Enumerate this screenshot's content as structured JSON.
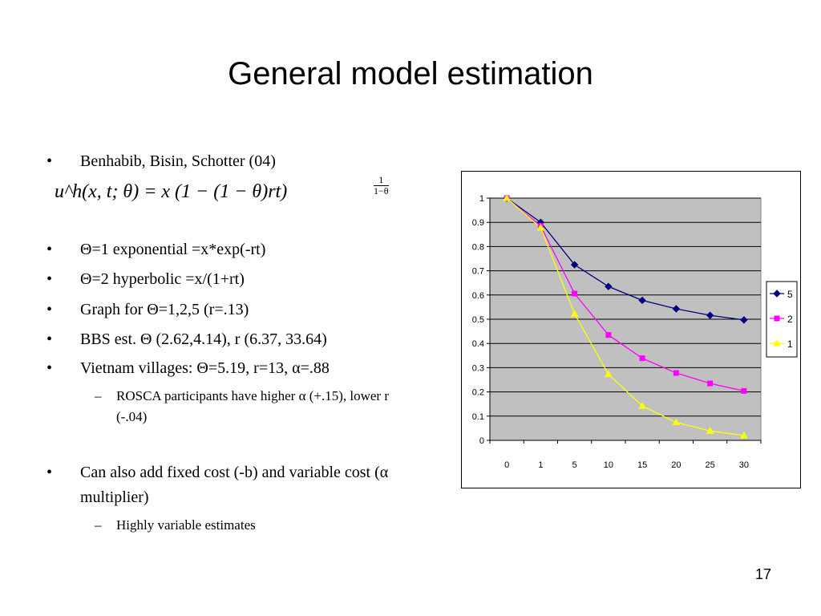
{
  "title": "General model estimation",
  "bullets": {
    "b1": "Benhabib, Bisin, Schotter (04)",
    "b2": "Θ=1 exponential =x*exp(-rt)",
    "b3": "Θ=2 hyperbolic =x/(1+rt)",
    "b4": "Graph for Θ=1,2,5 (r=.13)",
    "b5": "BBS est. Θ (2.62,4.14), r (6.37, 33.64)",
    "b6": "Vietnam villages: Θ=5.19, r=13, α=.88",
    "b7": "Can also add fixed cost (-b) and variable cost (α multiplier)"
  },
  "subbullets": {
    "s1": "ROSCA participants have higher α (+.15), lower r (-.04)",
    "s2": "Highly variable estimates"
  },
  "formula": {
    "main": "u^h(x, t; θ) = x (1 − (1 − θ)rt)",
    "exp_num": "1",
    "exp_den": "1−θ"
  },
  "bullet_symbol": "•",
  "dash_symbol": "–",
  "page_number": "17",
  "chart_data": {
    "type": "line",
    "categories": [
      "0",
      "1",
      "5",
      "10",
      "15",
      "20",
      "25",
      "30"
    ],
    "y_ticks": [
      "0",
      "0.1",
      "0.2",
      "0.3",
      "0.4",
      "0.5",
      "0.6",
      "0.7",
      "0.8",
      "0.9",
      "1"
    ],
    "ylim": [
      0,
      1
    ],
    "grid": true,
    "plot_background": "#c0c0c0",
    "legend_position": "right",
    "series": [
      {
        "name": "5",
        "color": "#000080",
        "marker": "diamond",
        "values": [
          1,
          0.9,
          0.725,
          0.635,
          0.578,
          0.543,
          0.516,
          0.497
        ]
      },
      {
        "name": "2",
        "color": "#ff00ff",
        "marker": "square",
        "values": [
          1,
          0.885,
          0.606,
          0.435,
          0.339,
          0.278,
          0.235,
          0.204
        ]
      },
      {
        "name": "1",
        "color": "#ffff00",
        "marker": "triangle",
        "values": [
          1,
          0.878,
          0.522,
          0.273,
          0.142,
          0.074,
          0.039,
          0.02
        ]
      }
    ]
  }
}
